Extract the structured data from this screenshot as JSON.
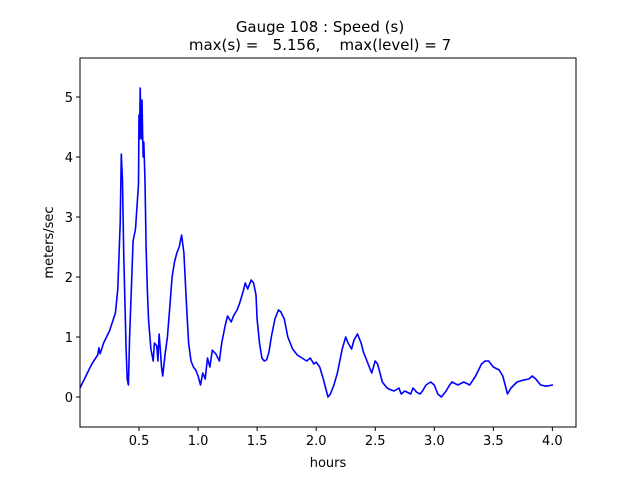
{
  "chart_data": {
    "type": "line",
    "title_line1": "Gauge 108 : Speed (s)",
    "title_line2": "max(s) =   5.156,    max(level) = 7",
    "xlabel": "hours",
    "ylabel": "meters/sec",
    "xlim": [
      0.0,
      4.2
    ],
    "ylim": [
      -0.5,
      5.65
    ],
    "grid": false,
    "x_ticks": [
      {
        "value": 0.5,
        "label": "0.5"
      },
      {
        "value": 1.0,
        "label": "1.0"
      },
      {
        "value": 1.5,
        "label": "1.5"
      },
      {
        "value": 2.0,
        "label": "2.0"
      },
      {
        "value": 2.5,
        "label": "2.5"
      },
      {
        "value": 3.0,
        "label": "3.0"
      },
      {
        "value": 3.5,
        "label": "3.5"
      },
      {
        "value": 4.0,
        "label": "4.0"
      }
    ],
    "y_ticks": [
      {
        "value": 0,
        "label": "0"
      },
      {
        "value": 1,
        "label": "1"
      },
      {
        "value": 2,
        "label": "2"
      },
      {
        "value": 3,
        "label": "3"
      },
      {
        "value": 4,
        "label": "4"
      },
      {
        "value": 5,
        "label": "5"
      }
    ],
    "series": [
      {
        "name": "speed",
        "color": "#0000ff",
        "points": [
          [
            0.0,
            0.15
          ],
          [
            0.1,
            0.55
          ],
          [
            0.15,
            0.7
          ],
          [
            0.16,
            0.82
          ],
          [
            0.17,
            0.72
          ],
          [
            0.2,
            0.9
          ],
          [
            0.25,
            1.1
          ],
          [
            0.3,
            1.4
          ],
          [
            0.32,
            1.8
          ],
          [
            0.34,
            2.9
          ],
          [
            0.35,
            4.05
          ],
          [
            0.36,
            3.6
          ],
          [
            0.37,
            2.4
          ],
          [
            0.38,
            1.6
          ],
          [
            0.39,
            0.8
          ],
          [
            0.4,
            0.3
          ],
          [
            0.41,
            0.2
          ],
          [
            0.42,
            1.0
          ],
          [
            0.44,
            2.1
          ],
          [
            0.45,
            2.6
          ],
          [
            0.47,
            2.8
          ],
          [
            0.48,
            3.1
          ],
          [
            0.49,
            3.4
          ],
          [
            0.495,
            3.55
          ],
          [
            0.5,
            4.7
          ],
          [
            0.505,
            4.3
          ],
          [
            0.51,
            5.15
          ],
          [
            0.515,
            4.6
          ],
          [
            0.52,
            4.3
          ],
          [
            0.525,
            4.95
          ],
          [
            0.53,
            4.4
          ],
          [
            0.535,
            4.0
          ],
          [
            0.54,
            4.25
          ],
          [
            0.55,
            3.6
          ],
          [
            0.56,
            2.5
          ],
          [
            0.57,
            1.8
          ],
          [
            0.58,
            1.3
          ],
          [
            0.6,
            0.8
          ],
          [
            0.62,
            0.6
          ],
          [
            0.63,
            0.9
          ],
          [
            0.65,
            0.85
          ],
          [
            0.66,
            0.6
          ],
          [
            0.67,
            1.05
          ],
          [
            0.68,
            0.8
          ],
          [
            0.69,
            0.5
          ],
          [
            0.7,
            0.35
          ],
          [
            0.72,
            0.7
          ],
          [
            0.74,
            1.0
          ],
          [
            0.76,
            1.5
          ],
          [
            0.78,
            2.0
          ],
          [
            0.8,
            2.25
          ],
          [
            0.82,
            2.4
          ],
          [
            0.84,
            2.5
          ],
          [
            0.86,
            2.7
          ],
          [
            0.88,
            2.4
          ],
          [
            0.9,
            1.6
          ],
          [
            0.92,
            0.9
          ],
          [
            0.94,
            0.6
          ],
          [
            0.96,
            0.5
          ],
          [
            0.98,
            0.45
          ],
          [
            1.0,
            0.35
          ],
          [
            1.02,
            0.2
          ],
          [
            1.04,
            0.4
          ],
          [
            1.06,
            0.3
          ],
          [
            1.08,
            0.65
          ],
          [
            1.1,
            0.5
          ],
          [
            1.12,
            0.78
          ],
          [
            1.15,
            0.72
          ],
          [
            1.18,
            0.6
          ],
          [
            1.2,
            0.9
          ],
          [
            1.23,
            1.2
          ],
          [
            1.25,
            1.35
          ],
          [
            1.28,
            1.25
          ],
          [
            1.3,
            1.35
          ],
          [
            1.33,
            1.45
          ],
          [
            1.35,
            1.55
          ],
          [
            1.38,
            1.75
          ],
          [
            1.4,
            1.9
          ],
          [
            1.42,
            1.8
          ],
          [
            1.45,
            1.95
          ],
          [
            1.47,
            1.9
          ],
          [
            1.49,
            1.7
          ],
          [
            1.5,
            1.3
          ],
          [
            1.52,
            0.9
          ],
          [
            1.54,
            0.65
          ],
          [
            1.56,
            0.6
          ],
          [
            1.58,
            0.62
          ],
          [
            1.6,
            0.75
          ],
          [
            1.62,
            1.0
          ],
          [
            1.65,
            1.3
          ],
          [
            1.68,
            1.45
          ],
          [
            1.7,
            1.42
          ],
          [
            1.73,
            1.3
          ],
          [
            1.76,
            1.0
          ],
          [
            1.8,
            0.8
          ],
          [
            1.84,
            0.7
          ],
          [
            1.88,
            0.65
          ],
          [
            1.92,
            0.6
          ],
          [
            1.95,
            0.65
          ],
          [
            1.98,
            0.55
          ],
          [
            2.0,
            0.58
          ],
          [
            2.03,
            0.5
          ],
          [
            2.06,
            0.3
          ],
          [
            2.08,
            0.15
          ],
          [
            2.1,
            0.0
          ],
          [
            2.12,
            0.05
          ],
          [
            2.15,
            0.2
          ],
          [
            2.18,
            0.4
          ],
          [
            2.2,
            0.6
          ],
          [
            2.22,
            0.8
          ],
          [
            2.25,
            1.0
          ],
          [
            2.27,
            0.9
          ],
          [
            2.3,
            0.8
          ],
          [
            2.32,
            0.95
          ],
          [
            2.35,
            1.05
          ],
          [
            2.38,
            0.9
          ],
          [
            2.4,
            0.75
          ],
          [
            2.42,
            0.65
          ],
          [
            2.45,
            0.5
          ],
          [
            2.47,
            0.4
          ],
          [
            2.5,
            0.6
          ],
          [
            2.52,
            0.55
          ],
          [
            2.54,
            0.4
          ],
          [
            2.56,
            0.25
          ],
          [
            2.6,
            0.15
          ],
          [
            2.63,
            0.12
          ],
          [
            2.66,
            0.1
          ],
          [
            2.7,
            0.15
          ],
          [
            2.72,
            0.05
          ],
          [
            2.75,
            0.1
          ],
          [
            2.8,
            0.05
          ],
          [
            2.82,
            0.15
          ],
          [
            2.85,
            0.08
          ],
          [
            2.88,
            0.05
          ],
          [
            2.9,
            0.1
          ],
          [
            2.93,
            0.2
          ],
          [
            2.97,
            0.25
          ],
          [
            3.0,
            0.2
          ],
          [
            3.03,
            0.05
          ],
          [
            3.06,
            0.0
          ],
          [
            3.1,
            0.1
          ],
          [
            3.13,
            0.2
          ],
          [
            3.15,
            0.25
          ],
          [
            3.2,
            0.2
          ],
          [
            3.25,
            0.25
          ],
          [
            3.3,
            0.2
          ],
          [
            3.35,
            0.35
          ],
          [
            3.4,
            0.55
          ],
          [
            3.43,
            0.6
          ],
          [
            3.46,
            0.6
          ],
          [
            3.5,
            0.5
          ],
          [
            3.55,
            0.45
          ],
          [
            3.58,
            0.35
          ],
          [
            3.62,
            0.05
          ],
          [
            3.65,
            0.15
          ],
          [
            3.7,
            0.25
          ],
          [
            3.75,
            0.28
          ],
          [
            3.8,
            0.3
          ],
          [
            3.83,
            0.35
          ],
          [
            3.86,
            0.3
          ],
          [
            3.9,
            0.2
          ],
          [
            3.95,
            0.18
          ],
          [
            4.0,
            0.2
          ]
        ]
      }
    ]
  }
}
